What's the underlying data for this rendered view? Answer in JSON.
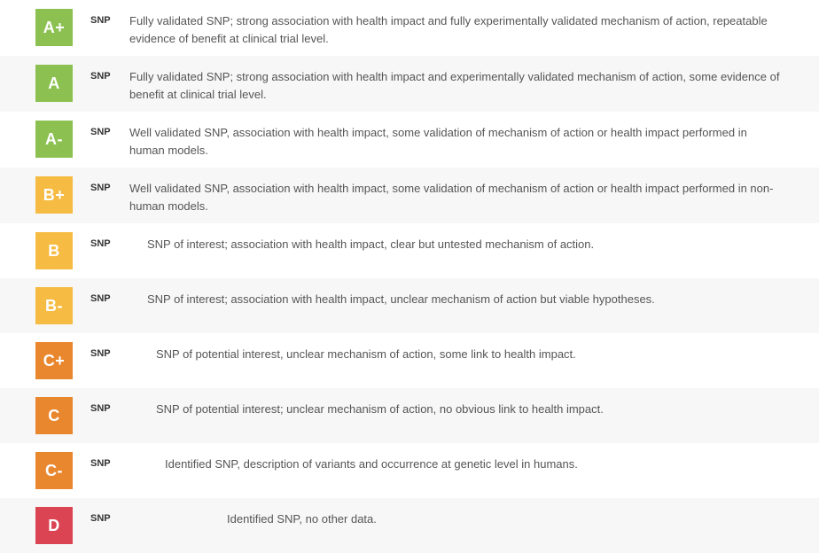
{
  "colors": {
    "green": "#8cc152",
    "yellow": "#f6bb42",
    "orange": "#e9872f",
    "red": "#da4453"
  },
  "typeLabel": "SNP",
  "rows": [
    {
      "grade": "A+",
      "colorKey": "green",
      "alt": false,
      "indent": 0,
      "desc": "Fully validated SNP; strong association with health impact and fully experimentally validated mechanism of action, repeatable evidence of benefit at clinical trial level."
    },
    {
      "grade": "A",
      "colorKey": "green",
      "alt": true,
      "indent": 0,
      "desc": "Fully validated SNP; strong association with health impact and experimentally validated mechanism of action, some evidence of benefit at clinical trial level."
    },
    {
      "grade": "A-",
      "colorKey": "green",
      "alt": false,
      "indent": 0,
      "desc": "Well validated SNP, association with health impact, some validation of mechanism of action or health impact performed in human models."
    },
    {
      "grade": "B+",
      "colorKey": "yellow",
      "alt": true,
      "indent": 0,
      "desc": "Well validated SNP, association with health impact, some validation of mechanism of action or health impact performed in non-human models."
    },
    {
      "grade": "B",
      "colorKey": "yellow",
      "alt": false,
      "indent": 20,
      "desc": "SNP of interest; association with health impact, clear but untested mechanism of action."
    },
    {
      "grade": "B-",
      "colorKey": "yellow",
      "alt": true,
      "indent": 20,
      "desc": "SNP of interest; association with health impact, unclear mechanism of action but viable hypotheses."
    },
    {
      "grade": "C+",
      "colorKey": "orange",
      "alt": false,
      "indent": 30,
      "desc": "SNP of potential interest, unclear mechanism of action, some link to health impact."
    },
    {
      "grade": "C",
      "colorKey": "orange",
      "alt": true,
      "indent": 30,
      "desc": "SNP of potential interest; unclear mechanism of action, no obvious link to health impact."
    },
    {
      "grade": "C-",
      "colorKey": "orange",
      "alt": false,
      "indent": 40,
      "desc": "Identified SNP, description of variants and occurrence at genetic level in humans."
    },
    {
      "grade": "D",
      "colorKey": "red",
      "alt": true,
      "indent": 110,
      "desc": "Identified SNP, no other data."
    }
  ]
}
